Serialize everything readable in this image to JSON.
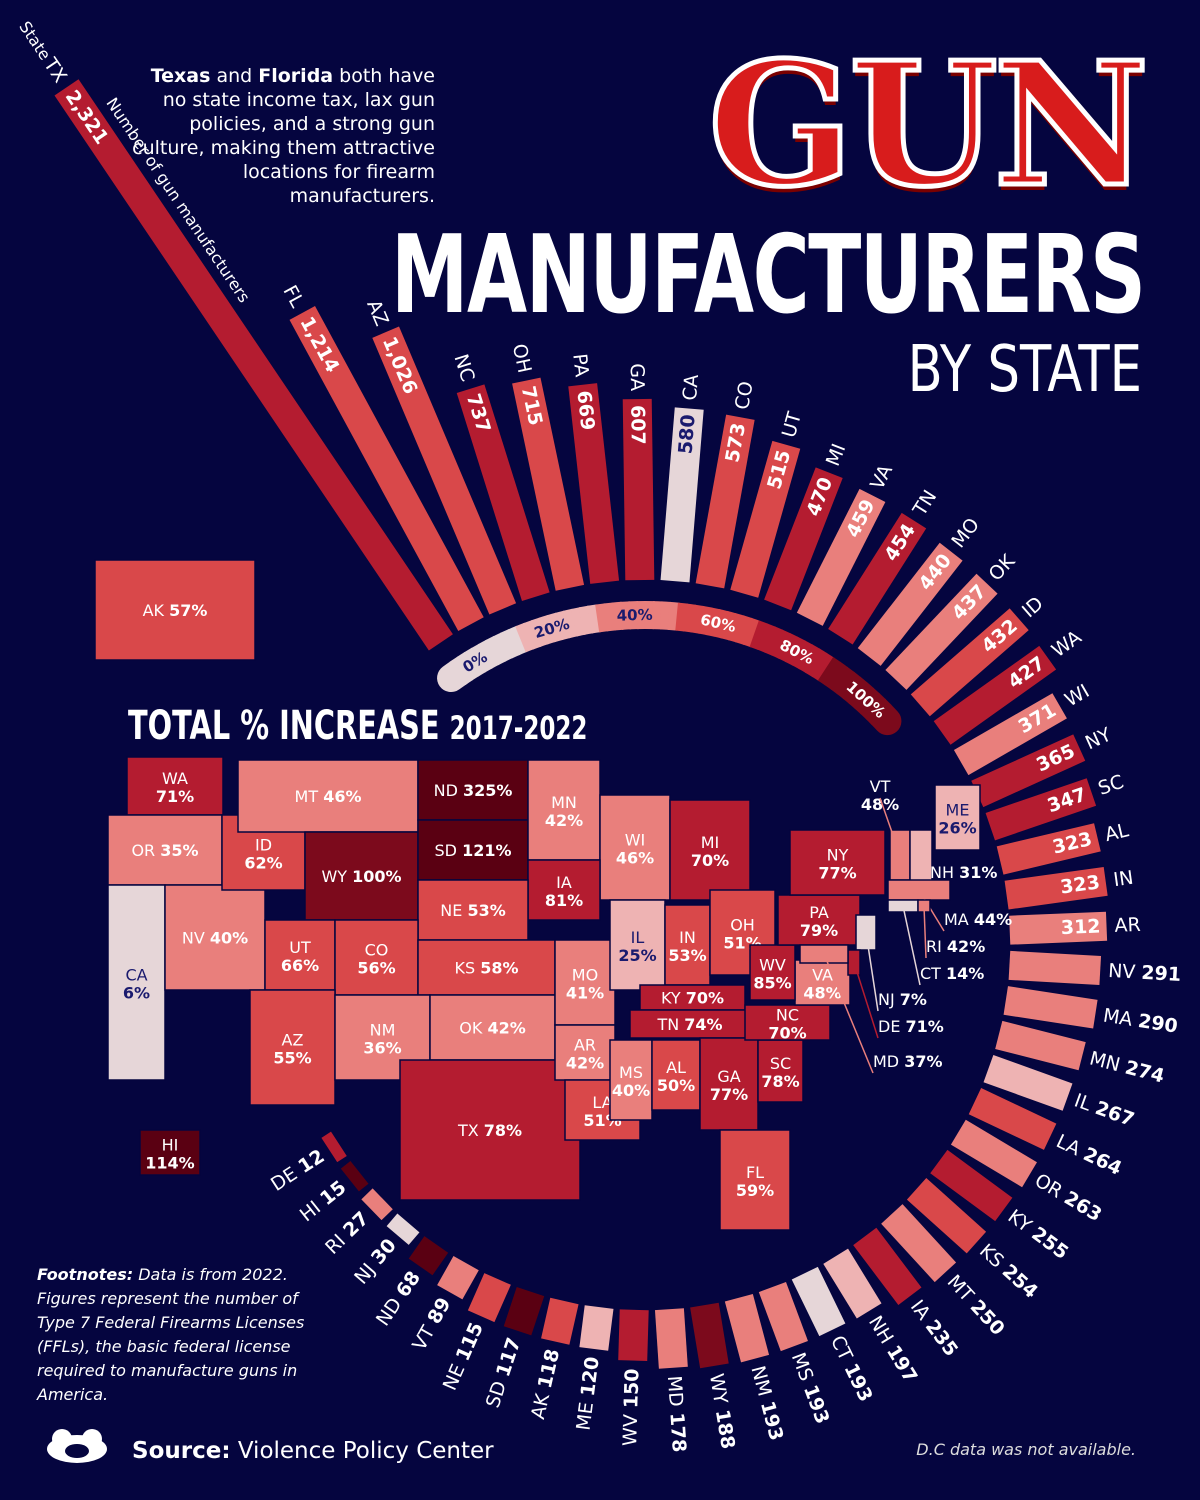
{
  "title": {
    "line1": "GUN",
    "line2": "MANUFACTURERS",
    "line3": "BY STATE"
  },
  "note": {
    "bold1": "Texas",
    "mid1": " and ",
    "bold2": "Florida",
    "rest": " both have no state income tax, lax gun policies, and a strong gun culture, making them attractive locations for firearm manufacturers."
  },
  "header": {
    "state": "State",
    "number": "Number of gun manufacturers"
  },
  "map_title": {
    "main": "TOTAL % INCREASE",
    "years": "2017-2022"
  },
  "footnote": {
    "label": "Footnotes:",
    "text": " Data is from 2022. Figures represent the number of Type 7 Federal Firearms Licenses (FFLs), the basic federal license required to manufacture guns in America."
  },
  "source": {
    "label": "Source:",
    "text": " Violence Policy Center"
  },
  "dc_note": "D.C data was not available.",
  "colors": {
    "background": "#05053f",
    "scale": [
      "#e6d6d8",
      "#eeb3b3",
      "#e97f7c",
      "#d9484a",
      "#b41c30",
      "#7c0a1c",
      "#5a0012"
    ]
  },
  "chart_data": {
    "type": "bar",
    "layout": "radial",
    "title": "Gun Manufacturers by State",
    "value_label": "Number of gun manufacturers (2022)",
    "color_label": "Total % increase 2017-2022",
    "legend_ticks": [
      "0%",
      "20%",
      "40%",
      "60%",
      "80%",
      "100%"
    ],
    "bars": [
      {
        "state": "TX",
        "value": "2,321",
        "n": 2321
      },
      {
        "state": "FL",
        "value": "1,214",
        "n": 1214
      },
      {
        "state": "AZ",
        "value": "1,026",
        "n": 1026
      },
      {
        "state": "NC",
        "value": "737",
        "n": 737
      },
      {
        "state": "OH",
        "value": "715",
        "n": 715
      },
      {
        "state": "PA",
        "value": "669",
        "n": 669
      },
      {
        "state": "GA",
        "value": "607",
        "n": 607
      },
      {
        "state": "CA",
        "value": "580",
        "n": 580
      },
      {
        "state": "CO",
        "value": "573",
        "n": 573
      },
      {
        "state": "UT",
        "value": "515",
        "n": 515
      },
      {
        "state": "MI",
        "value": "470",
        "n": 470
      },
      {
        "state": "VA",
        "value": "459",
        "n": 459
      },
      {
        "state": "TN",
        "value": "454",
        "n": 454
      },
      {
        "state": "MO",
        "value": "440",
        "n": 440
      },
      {
        "state": "OK",
        "value": "437",
        "n": 437
      },
      {
        "state": "ID",
        "value": "432",
        "n": 432
      },
      {
        "state": "WA",
        "value": "427",
        "n": 427
      },
      {
        "state": "WI",
        "value": "371",
        "n": 371
      },
      {
        "state": "NY",
        "value": "365",
        "n": 365
      },
      {
        "state": "SC",
        "value": "347",
        "n": 347
      },
      {
        "state": "AL",
        "value": "323",
        "n": 323
      },
      {
        "state": "IN",
        "value": "323",
        "n": 323
      },
      {
        "state": "AR",
        "value": "312",
        "n": 312
      },
      {
        "state": "NV",
        "value": "291",
        "n": 291
      },
      {
        "state": "MA",
        "value": "290",
        "n": 290
      },
      {
        "state": "MN",
        "value": "274",
        "n": 274
      },
      {
        "state": "IL",
        "value": "267",
        "n": 267
      },
      {
        "state": "LA",
        "value": "264",
        "n": 264
      },
      {
        "state": "OR",
        "value": "263",
        "n": 263
      },
      {
        "state": "KY",
        "value": "255",
        "n": 255
      },
      {
        "state": "KS",
        "value": "254",
        "n": 254
      },
      {
        "state": "MT",
        "value": "250",
        "n": 250
      },
      {
        "state": "IA",
        "value": "235",
        "n": 235
      },
      {
        "state": "NH",
        "value": "197",
        "n": 197
      },
      {
        "state": "CT",
        "value": "193",
        "n": 193
      },
      {
        "state": "MS",
        "value": "193",
        "n": 193
      },
      {
        "state": "NM",
        "value": "193",
        "n": 193
      },
      {
        "state": "WY",
        "value": "188",
        "n": 188
      },
      {
        "state": "MD",
        "value": "178",
        "n": 178
      },
      {
        "state": "WV",
        "value": "150",
        "n": 150
      },
      {
        "state": "ME",
        "value": "120",
        "n": 120
      },
      {
        "state": "AK",
        "value": "118",
        "n": 118
      },
      {
        "state": "SD",
        "value": "117",
        "n": 117
      },
      {
        "state": "NE",
        "value": "115",
        "n": 115
      },
      {
        "state": "VT",
        "value": "89",
        "n": 89
      },
      {
        "state": "ND",
        "value": "68",
        "n": 68
      },
      {
        "state": "NJ",
        "value": "30",
        "n": 30
      },
      {
        "state": "RI",
        "value": "27",
        "n": 27
      },
      {
        "state": "HI",
        "value": "15",
        "n": 15
      },
      {
        "state": "DE",
        "value": "12",
        "n": 12
      }
    ],
    "increase": {
      "AK": "57%",
      "WA": "71%",
      "OR": "35%",
      "CA": "6%",
      "NV": "40%",
      "ID": "62%",
      "MT": "46%",
      "WY": "100%",
      "ND": "325%",
      "SD": "121%",
      "MN": "42%",
      "WI": "46%",
      "MI": "70%",
      "IA": "81%",
      "NE": "53%",
      "UT": "66%",
      "CO": "56%",
      "KS": "58%",
      "AZ": "55%",
      "NM": "36%",
      "OK": "42%",
      "TX": "78%",
      "MO": "41%",
      "AR": "42%",
      "LA": "51%",
      "MS": "40%",
      "AL": "50%",
      "GA": "77%",
      "SC": "78%",
      "FL": "59%",
      "TN": "74%",
      "KY": "70%",
      "NC": "70%",
      "VA": "48%",
      "WV": "85%",
      "IL": "25%",
      "IN": "53%",
      "OH": "51%",
      "PA": "79%",
      "NY": "77%",
      "VT": "48%",
      "ME": "26%",
      "NH": "31%",
      "MA": "44%",
      "RI": "42%",
      "CT": "14%",
      "NJ": "7%",
      "DE": "71%",
      "MD": "37%",
      "HI": "114%"
    }
  }
}
